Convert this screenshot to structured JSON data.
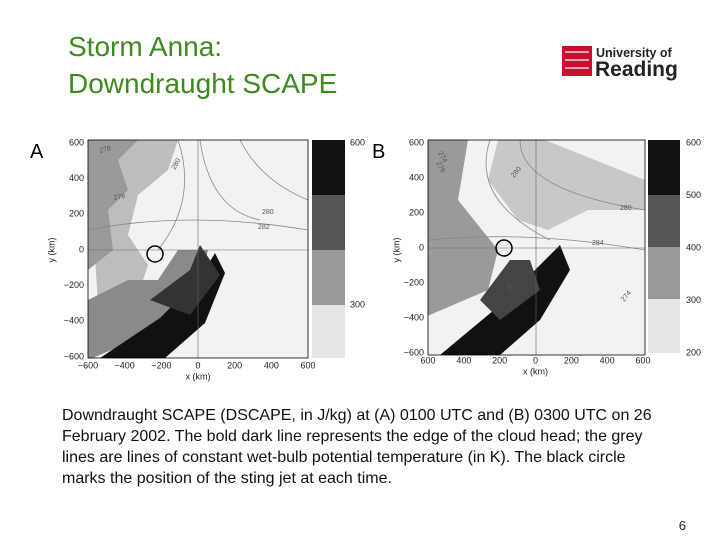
{
  "title": [
    "Storm Anna:",
    "Downdraught SCAPE"
  ],
  "logo": {
    "line1": "University of",
    "line2": "Reading"
  },
  "panels": [
    {
      "label": "A",
      "y_axis_label": "y (km)",
      "x_axis_label": "x (km)",
      "yticks": [
        "600",
        "400",
        "200",
        "0",
        "−200",
        "−400",
        "−600"
      ],
      "xticks": [
        "−600",
        "−400",
        "−200",
        "0",
        "200",
        "400",
        "600"
      ],
      "colorbar": [
        "600",
        "300"
      ],
      "contour_labels": [
        "278",
        "280",
        "276",
        "280",
        "282"
      ]
    },
    {
      "label": "B",
      "y_axis_label": "y (km)",
      "x_axis_label": "x (km)",
      "yticks": [
        "600",
        "400",
        "200",
        "0",
        "−200",
        "−400",
        "−600"
      ],
      "xticks": [
        "600",
        "400",
        "200",
        "0",
        "200",
        "400",
        "600"
      ],
      "colorbar": [
        "600",
        "500",
        "400",
        "300",
        "200"
      ],
      "contour_labels": [
        "274",
        "276",
        "280",
        "280",
        "284",
        "282",
        "274"
      ]
    }
  ],
  "caption": "Downdraught SCAPE (DSCAPE, in J/kg) at (A) 0100 UTC and (B) 0300 UTC on 26 February 2002. The bold dark line represents the edge of the cloud head; the grey lines are lines of constant wet-bulb potential temperature (in K). The black circle marks the position of the sting jet at each time.",
  "page_number": "6"
}
